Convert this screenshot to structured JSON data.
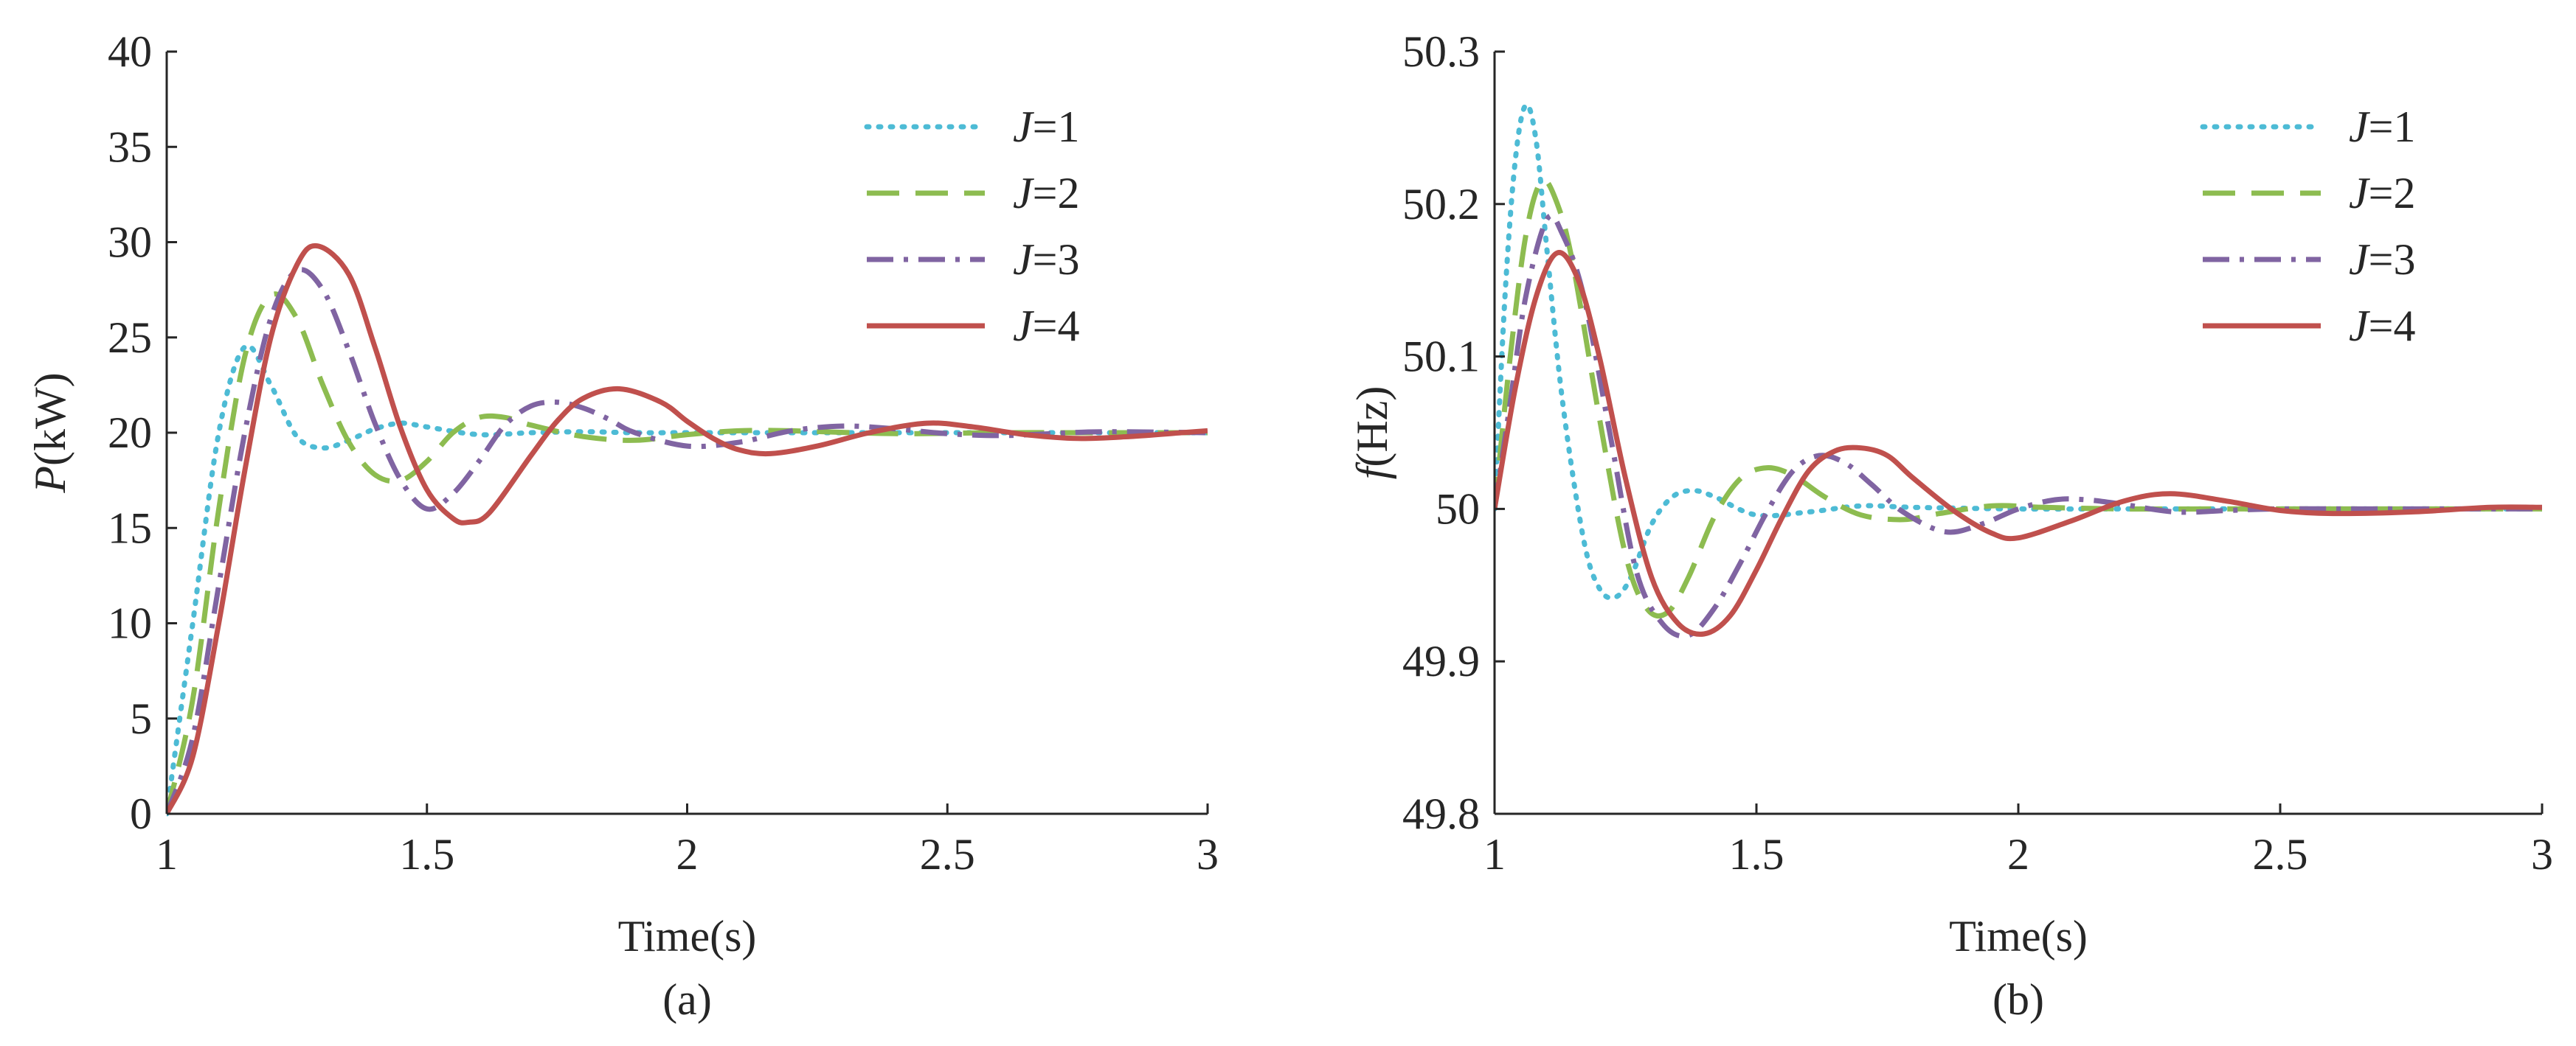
{
  "chart_data": [
    {
      "type": "line",
      "panel_label": "(a)",
      "xlabel": "Time(s)",
      "ylabel": {
        "symbol": "P",
        "unit": "(kW)"
      },
      "xlim": [
        1,
        3
      ],
      "ylim": [
        0,
        40
      ],
      "xticks": [
        "1",
        "1.5",
        "2",
        "2.5",
        "3"
      ],
      "yticks": [
        "0",
        "5",
        "10",
        "15",
        "20",
        "25",
        "30",
        "35",
        "40"
      ],
      "grid": false,
      "legend_position": "top-right",
      "series": [
        {
          "name": "J=1",
          "color": "#4DBBD5",
          "dash": "dotted",
          "x": [
            1.0,
            1.05,
            1.1,
            1.15,
            1.2,
            1.25,
            1.3,
            1.35,
            1.4,
            1.45,
            1.5,
            1.6,
            1.7,
            1.8,
            1.9,
            2.0,
            2.2,
            2.4,
            2.6,
            2.8,
            3.0
          ],
          "y": [
            0,
            10,
            20,
            24.5,
            22.5,
            19.8,
            19.2,
            19.6,
            20.2,
            20.5,
            20.3,
            19.9,
            20.0,
            20.05,
            20.0,
            20.0,
            20.0,
            20.0,
            20.0,
            20.0,
            20.0
          ]
        },
        {
          "name": "J=2",
          "color": "#8DBC50",
          "dash": "dashed",
          "x": [
            1.0,
            1.05,
            1.1,
            1.15,
            1.2,
            1.25,
            1.3,
            1.35,
            1.4,
            1.45,
            1.5,
            1.55,
            1.6,
            1.65,
            1.7,
            1.8,
            1.9,
            2.0,
            2.1,
            2.2,
            2.4,
            2.6,
            2.8,
            3.0
          ],
          "y": [
            0,
            6,
            16,
            24,
            27.2,
            26,
            22.5,
            19.5,
            17.8,
            17.5,
            18.5,
            20.0,
            20.8,
            20.8,
            20.4,
            19.8,
            19.6,
            19.9,
            20.1,
            20.1,
            19.95,
            20.0,
            20.0,
            20.0
          ]
        },
        {
          "name": "J=3",
          "color": "#8064A2",
          "dash": "dashdot",
          "x": [
            1.0,
            1.05,
            1.1,
            1.15,
            1.2,
            1.25,
            1.3,
            1.35,
            1.4,
            1.45,
            1.5,
            1.55,
            1.6,
            1.65,
            1.7,
            1.75,
            1.8,
            1.85,
            1.9,
            2.0,
            2.1,
            2.2,
            2.3,
            2.4,
            2.5,
            2.6,
            2.7,
            2.8,
            3.0
          ],
          "y": [
            0,
            4,
            12,
            20,
            26,
            28.5,
            27.5,
            24.3,
            20.5,
            17.5,
            16.0,
            16.8,
            18.5,
            20.4,
            21.4,
            21.6,
            21.3,
            20.7,
            20.0,
            19.3,
            19.5,
            20.1,
            20.35,
            20.2,
            19.95,
            19.85,
            19.95,
            20.05,
            20.0
          ]
        },
        {
          "name": "J=4",
          "color": "#C0504D",
          "dash": "solid",
          "x": [
            1.0,
            1.05,
            1.1,
            1.15,
            1.2,
            1.25,
            1.29,
            1.35,
            1.4,
            1.45,
            1.5,
            1.55,
            1.58,
            1.62,
            1.7,
            1.75,
            1.8,
            1.87,
            1.95,
            2.0,
            2.05,
            2.1,
            2.16,
            2.25,
            2.35,
            2.46,
            2.55,
            2.65,
            2.75,
            2.85,
            2.95,
            3.0
          ],
          "y": [
            0,
            3,
            10,
            18,
            25,
            28.8,
            29.8,
            28.3,
            24.5,
            20.2,
            17.0,
            15.5,
            15.3,
            15.8,
            18.8,
            20.6,
            21.8,
            22.3,
            21.6,
            20.6,
            19.7,
            19.1,
            18.9,
            19.3,
            20.0,
            20.5,
            20.3,
            19.9,
            19.7,
            19.8,
            20.0,
            20.1
          ]
        }
      ]
    },
    {
      "type": "line",
      "panel_label": "(b)",
      "xlabel": "Time(s)",
      "ylabel": {
        "symbol": "f",
        "unit": "(Hz)"
      },
      "xlim": [
        1,
        3
      ],
      "ylim": [
        49.8,
        50.3
      ],
      "xticks": [
        "1",
        "1.5",
        "2",
        "2.5",
        "3"
      ],
      "yticks": [
        "49.8",
        "49.9",
        "50",
        "50.1",
        "50.2",
        "50.3"
      ],
      "grid": false,
      "legend_position": "top-right",
      "series": [
        {
          "name": "J=1",
          "color": "#4DBBD5",
          "dash": "dotted",
          "x": [
            1.0,
            1.02,
            1.04,
            1.06,
            1.08,
            1.1,
            1.13,
            1.17,
            1.2,
            1.23,
            1.26,
            1.3,
            1.34,
            1.38,
            1.42,
            1.5,
            1.6,
            1.7,
            1.8,
            2.0,
            2.2,
            2.5,
            3.0
          ],
          "y": [
            50.0,
            50.14,
            50.23,
            50.265,
            50.24,
            50.17,
            50.07,
            49.98,
            49.948,
            49.942,
            49.955,
            49.99,
            50.008,
            50.012,
            50.008,
            49.996,
            49.998,
            50.002,
            50.001,
            50.0,
            50.0,
            50.0,
            50.0
          ]
        },
        {
          "name": "J=2",
          "color": "#8DBC50",
          "dash": "dashed",
          "x": [
            1.0,
            1.03,
            1.06,
            1.09,
            1.12,
            1.15,
            1.2,
            1.25,
            1.29,
            1.33,
            1.37,
            1.42,
            1.47,
            1.52,
            1.57,
            1.63,
            1.7,
            1.78,
            1.85,
            1.95,
            2.05,
            2.2,
            2.4,
            2.6,
            3.0
          ],
          "y": [
            50.0,
            50.1,
            50.18,
            50.215,
            50.2,
            50.16,
            50.06,
            49.97,
            49.935,
            49.932,
            49.955,
            49.995,
            50.02,
            50.027,
            50.022,
            50.008,
            49.996,
            49.993,
            49.997,
            50.002,
            50.001,
            50.0,
            50.0,
            50.0,
            50.0
          ]
        },
        {
          "name": "J=3",
          "color": "#8064A2",
          "dash": "dashdot",
          "x": [
            1.0,
            1.03,
            1.06,
            1.1,
            1.13,
            1.17,
            1.22,
            1.27,
            1.32,
            1.37,
            1.42,
            1.47,
            1.52,
            1.57,
            1.62,
            1.67,
            1.72,
            1.78,
            1.86,
            1.93,
            2.0,
            2.07,
            2.13,
            2.2,
            2.3,
            2.4,
            2.5,
            2.7,
            3.0
          ],
          "y": [
            50.0,
            50.07,
            50.14,
            50.19,
            50.18,
            50.14,
            50.05,
            49.96,
            49.925,
            49.917,
            49.935,
            49.965,
            49.998,
            50.025,
            50.035,
            50.03,
            50.016,
            49.998,
            49.985,
            49.99,
            50.0,
            50.006,
            50.006,
            50.003,
            49.998,
            49.999,
            50.0,
            50.0,
            50.0
          ]
        },
        {
          "name": "J=4",
          "color": "#C0504D",
          "dash": "solid",
          "x": [
            1.0,
            1.04,
            1.08,
            1.12,
            1.16,
            1.2,
            1.25,
            1.3,
            1.35,
            1.4,
            1.45,
            1.5,
            1.55,
            1.6,
            1.65,
            1.7,
            1.75,
            1.8,
            1.88,
            1.95,
            2.0,
            2.1,
            2.2,
            2.29,
            2.4,
            2.5,
            2.6,
            2.75,
            2.9,
            3.0
          ],
          "y": [
            50.0,
            50.08,
            50.14,
            50.168,
            50.15,
            50.1,
            50.02,
            49.955,
            49.925,
            49.918,
            49.93,
            49.96,
            49.995,
            50.025,
            50.038,
            50.04,
            50.035,
            50.02,
            49.998,
            49.984,
            49.981,
            49.992,
            50.005,
            50.01,
            50.005,
            49.999,
            49.997,
            49.998,
            50.001,
            50.001
          ]
        }
      ]
    }
  ]
}
